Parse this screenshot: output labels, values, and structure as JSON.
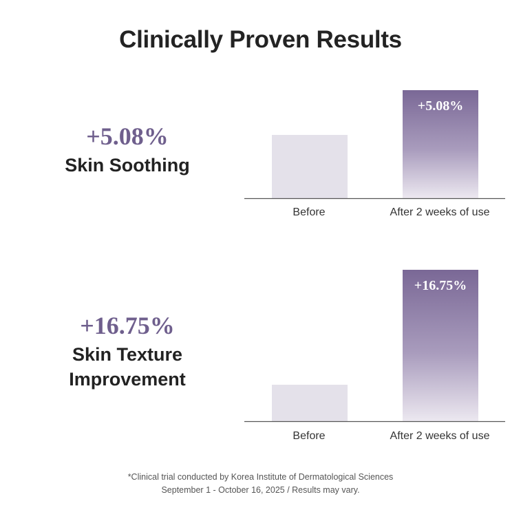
{
  "title": "Clinically Proven Results",
  "colors": {
    "accent": "#6f5f8d",
    "before_bar": "#e4e1ea",
    "after_top": "#7a6896",
    "after_bottom": "#ece8f0",
    "axis": "#555555"
  },
  "stats": [
    {
      "value": "+5.08%",
      "label_lines": [
        "Skin Soothing"
      ]
    },
    {
      "value": "+16.75%",
      "label_lines": [
        "Skin Texture",
        "Improvement"
      ]
    }
  ],
  "chart_data": [
    {
      "type": "bar",
      "categories": [
        "Before",
        "After 2 weeks of use"
      ],
      "values": [
        100,
        105.08
      ],
      "data_labels": [
        "",
        "+5.08%"
      ]
    },
    {
      "type": "bar",
      "categories": [
        "Before",
        "After 2 weeks of use"
      ],
      "values": [
        100,
        116.75
      ],
      "data_labels": [
        "",
        "+16.75%"
      ]
    }
  ],
  "footnote": {
    "line1": "*Clinical trial conducted by Korea Institute of Dermatological Sciences",
    "line2": "September 1 - October 16, 2025 / Results may vary."
  }
}
